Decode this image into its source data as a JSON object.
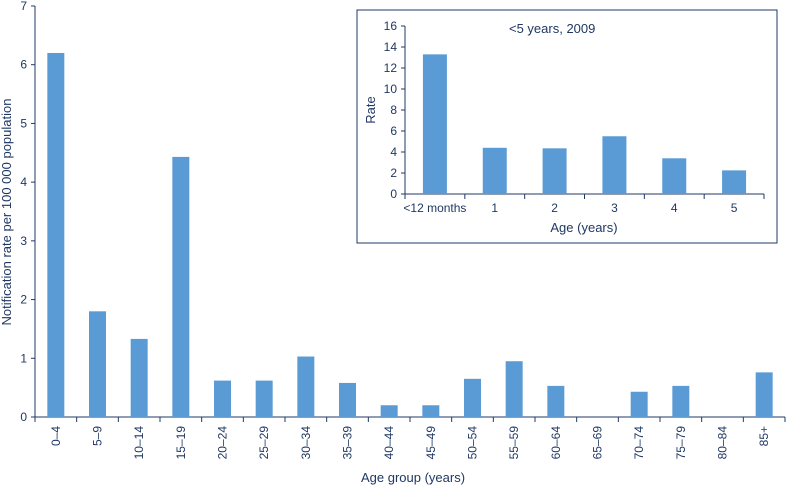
{
  "colors": {
    "bar": "#5b9bd5",
    "axis": "#1f3864",
    "text": "#1f3864",
    "background": "#ffffff"
  },
  "chart_data": [
    {
      "type": "bar",
      "title": "",
      "xlabel": "Age group (years)",
      "ylabel": "Notification rate per 100 000 population",
      "ylim": [
        0,
        7
      ],
      "yticks": [
        0,
        1,
        2,
        3,
        4,
        5,
        6,
        7
      ],
      "grid": false,
      "categories": [
        "0–4",
        "5–9",
        "10–14",
        "15–19",
        "20–24",
        "25–29",
        "30–34",
        "35–39",
        "40–44",
        "45–49",
        "50–54",
        "55–59",
        "60–64",
        "65–69",
        "70–74",
        "75–79",
        "80–84",
        "85+"
      ],
      "values": [
        6.2,
        1.8,
        1.33,
        4.43,
        0.62,
        0.62,
        1.03,
        0.58,
        0.2,
        0.2,
        0.65,
        0.95,
        0.53,
        0,
        0.43,
        0.53,
        0,
        0.76
      ]
    },
    {
      "type": "bar",
      "title": "<5 years, 2009",
      "xlabel": "Age (years)",
      "ylabel": "Rate",
      "ylim": [
        0,
        16
      ],
      "yticks": [
        0,
        2,
        4,
        6,
        8,
        10,
        12,
        14,
        16
      ],
      "grid": false,
      "categories": [
        "<12 months",
        "1",
        "2",
        "3",
        "4",
        "5"
      ],
      "values": [
        13.3,
        4.4,
        4.35,
        5.5,
        3.4,
        2.25
      ]
    }
  ]
}
